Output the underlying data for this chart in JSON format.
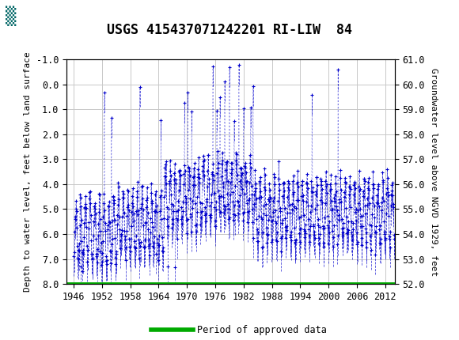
{
  "title": "USGS 415437071242201 RI-LIW  84",
  "ylabel_left": "Depth to water level, feet below land surface",
  "ylabel_right": "Groundwater level above NGVD 1929, feet",
  "ylim_left": [
    8.0,
    -1.0
  ],
  "ylim_right": [
    52.0,
    61.0
  ],
  "yticks_left": [
    -1.0,
    0.0,
    1.0,
    2.0,
    3.0,
    4.0,
    5.0,
    6.0,
    7.0,
    8.0
  ],
  "yticks_right": [
    61.0,
    60.0,
    59.0,
    58.0,
    57.0,
    56.0,
    55.0,
    54.0,
    53.0,
    52.0
  ],
  "xlim": [
    1944.5,
    2014.0
  ],
  "xticks": [
    1946,
    1952,
    1958,
    1964,
    1970,
    1976,
    1982,
    1988,
    1994,
    2000,
    2006,
    2012
  ],
  "data_color": "#0000CC",
  "legend_color": "#00AA00",
  "legend_label": "Period of approved data",
  "header_color": "#006666",
  "background_color": "#ffffff",
  "plot_bg_color": "#ffffff",
  "grid_color": "#c8c8c8",
  "title_fontsize": 12,
  "axis_label_fontsize": 8,
  "tick_fontsize": 8.5
}
